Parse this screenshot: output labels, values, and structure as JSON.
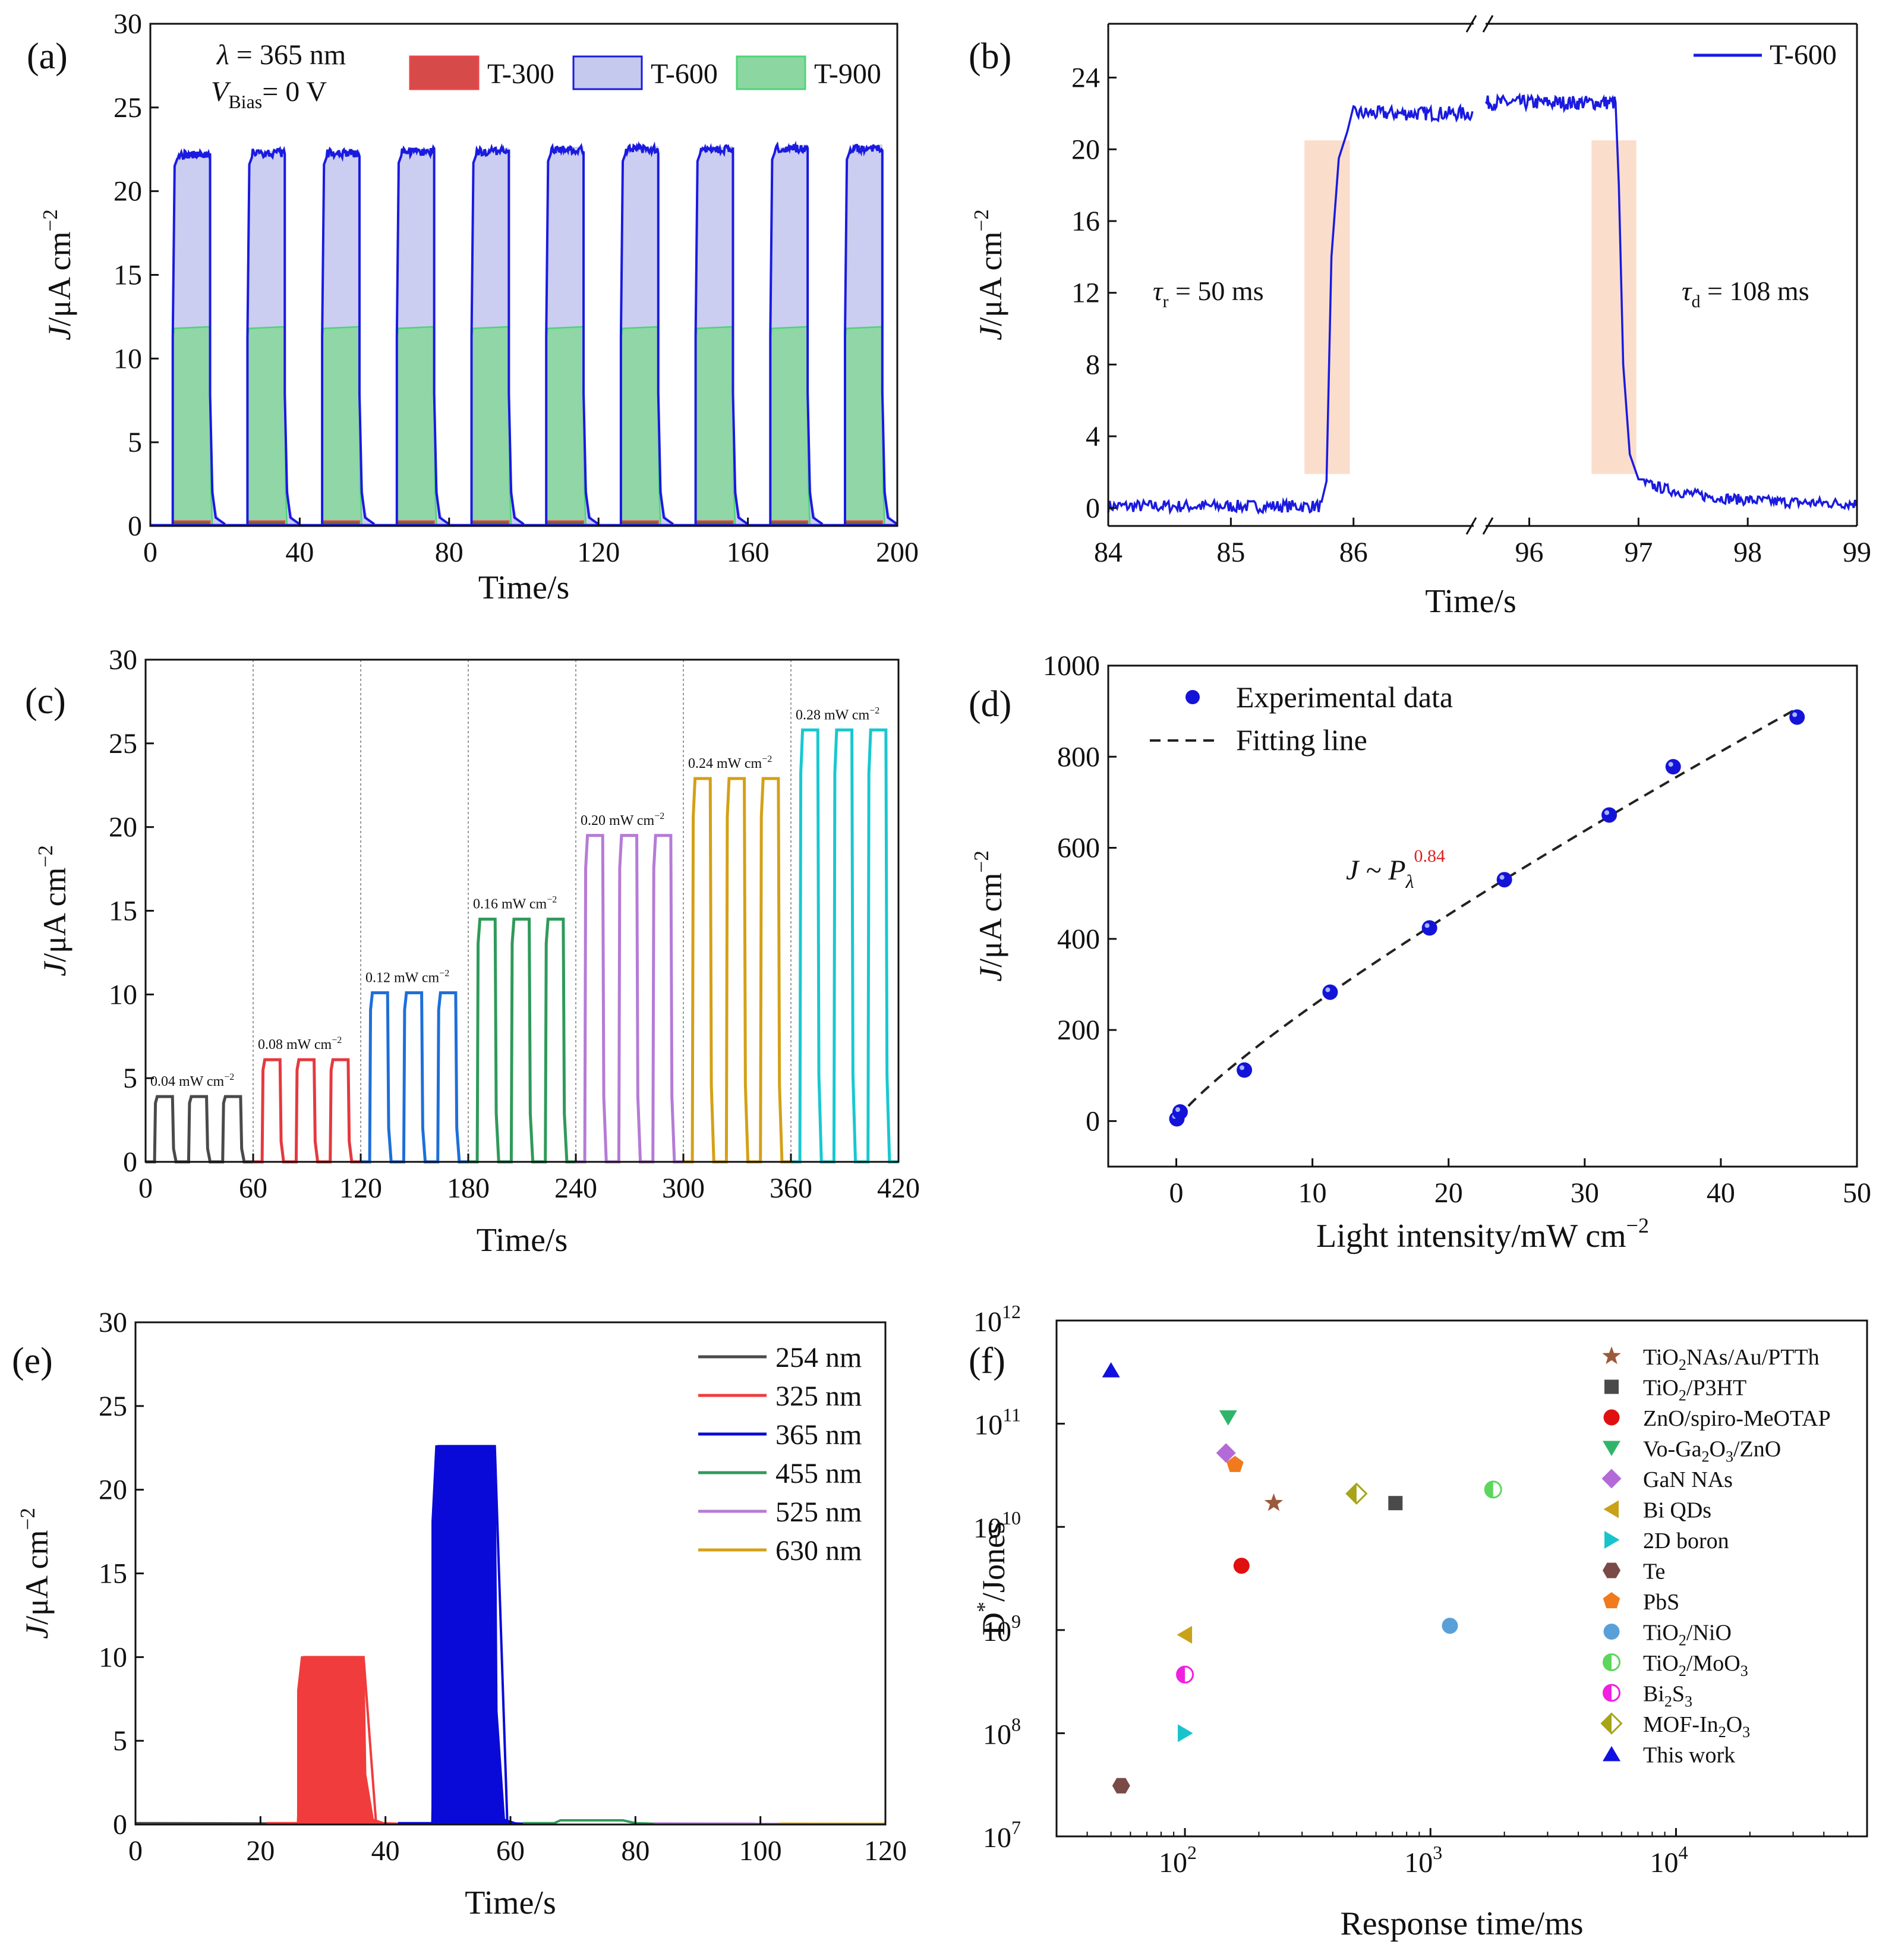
{
  "chart_data": [
    {
      "panel": "(a)",
      "type": "line",
      "xlabel": "Time/s",
      "ylabel": "J/μA cm",
      "ylabel_sup": "−2",
      "xlim": [
        0,
        200
      ],
      "ylim": [
        0,
        30
      ],
      "xticks": [
        "0",
        "40",
        "80",
        "120",
        "160",
        "200"
      ],
      "yticks": [
        "0",
        "5",
        "10",
        "15",
        "20",
        "25",
        "30"
      ],
      "annotations": {
        "lambda": "λ = 365 nm",
        "vbias_main": "V",
        "vbias_sub": "Bias",
        "vbias_rest": "= 0 V"
      },
      "pulse_starts": [
        6,
        26,
        46,
        66,
        86,
        106,
        126,
        146,
        166,
        186
      ],
      "pulse_width": 10,
      "series": [
        {
          "name": "T-300",
          "color": "#e8464b",
          "peak": 0.3
        },
        {
          "name": "T-600",
          "color": "#1a1ae0",
          "fill": "#c5c9ee",
          "peak": 22.6,
          "peaks": [
            22.4,
            22.5,
            22.5,
            22.6,
            22.6,
            22.7,
            22.7,
            22.7,
            22.8,
            22.8
          ]
        },
        {
          "name": "T-900",
          "color": "#4fd476",
          "fill": "#8cd6a2",
          "peak": 11.8
        }
      ]
    },
    {
      "panel": "(b)",
      "type": "line",
      "xlabel": "Time/s",
      "ylabel": "J/μA cm",
      "ylabel_sup": "−2",
      "segment1_xlim": [
        84,
        86.98
      ],
      "segment2_xlim": [
        95.6,
        99
      ],
      "ylim": [
        -1,
        27
      ],
      "xticks": [
        "84",
        "85",
        "86",
        "96",
        "97",
        "98",
        "99"
      ],
      "yticks": [
        "0",
        "4",
        "8",
        "12",
        "16",
        "20",
        "24"
      ],
      "series": [
        {
          "name": "T-600",
          "color": "#1a1ae0"
        }
      ],
      "rise_time": "= 50 ms",
      "rise_symbol": "τ",
      "rise_sub": "r",
      "decay_time": "= 108 ms",
      "decay_symbol": "τ",
      "decay_sub": "d",
      "on_time": 85.75,
      "off_time": 96.8,
      "level_seg1": 22.0,
      "level_seg2": 22.6
    },
    {
      "panel": "(c)",
      "type": "line",
      "xlabel": "Time/s",
      "ylabel": "J/μA cm",
      "ylabel_sup": "−2",
      "xlim": [
        0,
        420
      ],
      "ylim": [
        0,
        30
      ],
      "xticks": [
        "0",
        "60",
        "120",
        "180",
        "240",
        "300",
        "360",
        "420"
      ],
      "yticks": [
        "0",
        "5",
        "10",
        "15",
        "20",
        "25",
        "30"
      ],
      "groups": [
        {
          "label": "0.04 mW cm",
          "sup": "−2",
          "peak": 3.9,
          "color": "#4a4a4a"
        },
        {
          "label": "0.08 mW cm",
          "sup": "−2",
          "peak": 6.1,
          "color": "#e5393f"
        },
        {
          "label": "0.12 mW cm",
          "sup": "−2",
          "peak": 10.1,
          "color": "#1e6fd9"
        },
        {
          "label": "0.16 mW cm",
          "sup": "−2",
          "peak": 14.5,
          "color": "#2f9a5a"
        },
        {
          "label": "0.20 mW cm",
          "sup": "−2",
          "peak": 19.5,
          "color": "#b57bd6"
        },
        {
          "label": "0.24 mW cm",
          "sup": "−2",
          "peak": 22.9,
          "color": "#d4a017"
        },
        {
          "label": "0.28 mW cm",
          "sup": "−2",
          "peak": 25.8,
          "color": "#18c8d0"
        }
      ]
    },
    {
      "panel": "(d)",
      "type": "scatter",
      "xlabel": "Light intensity/mW cm",
      "xlabel_sup": "−2",
      "ylabel": "J/μA cm",
      "ylabel_sup": "−2",
      "xlim": [
        -5,
        50
      ],
      "ylim": [
        -100,
        1000
      ],
      "xticks": [
        "0",
        "10",
        "20",
        "30",
        "40",
        "50"
      ],
      "yticks": [
        "0",
        "200",
        "400",
        "600",
        "800",
        "1000"
      ],
      "legend": [
        "Experimental data",
        "Fitting line"
      ],
      "fit_label": "J ~ P",
      "fit_sub": "λ",
      "fit_exp": "0.84",
      "x": [
        0.04,
        0.28,
        5,
        11.3,
        18.6,
        24.1,
        31.8,
        36.5,
        45.6
      ],
      "y": [
        5,
        20,
        112,
        283,
        424,
        530,
        672,
        778,
        887
      ],
      "fit": {
        "a": 36.6,
        "b": 0.84
      }
    },
    {
      "panel": "(e)",
      "type": "line",
      "xlabel": "Time/s",
      "ylabel": "J/μA cm",
      "ylabel_sup": "−2",
      "xlim": [
        0,
        120
      ],
      "ylim": [
        0,
        30
      ],
      "xticks": [
        "0",
        "20",
        "40",
        "60",
        "80",
        "100",
        "120"
      ],
      "yticks": [
        "0",
        "5",
        "10",
        "15",
        "20",
        "25",
        "30"
      ],
      "series": [
        {
          "name": "254 nm",
          "color": "#4a4a4a",
          "range": [
            0,
            21
          ],
          "peak": 0.08
        },
        {
          "name": "325 nm",
          "color": "#f03c3c",
          "range": [
            21,
            42
          ],
          "peak": 10.0,
          "pulse": [
            26,
            36.5
          ]
        },
        {
          "name": "365 nm",
          "color": "#0a0ad8",
          "range": [
            42,
            62
          ],
          "peak": 22.6,
          "pulse": [
            47.5,
            57.5
          ]
        },
        {
          "name": "455 nm",
          "color": "#2f9a5a",
          "range": [
            62,
            83
          ],
          "peak": 0.25,
          "pulse": [
            67,
            78
          ]
        },
        {
          "name": "525 nm",
          "color": "#b57bd6",
          "range": [
            83,
            103
          ],
          "peak": 0.06
        },
        {
          "name": "630 nm",
          "color": "#d4a017",
          "range": [
            103,
            120
          ],
          "peak": 0.05
        }
      ]
    },
    {
      "panel": "(f)",
      "type": "scatter",
      "xlabel": "Response time/ms",
      "ylabel": "D",
      "ylabel_sup": "*",
      "ylabel_rest": "/Jones",
      "xscale": "log",
      "yscale": "log",
      "xlim": [
        30,
        60000
      ],
      "ylim": [
        10000000.0,
        1000000000000.0
      ],
      "xticks": [
        {
          "base": "10",
          "exp": "2"
        },
        {
          "base": "10",
          "exp": "3"
        },
        {
          "base": "10",
          "exp": "4"
        }
      ],
      "yticks": [
        {
          "base": "10",
          "exp": "7"
        },
        {
          "base": "10",
          "exp": "8"
        },
        {
          "base": "10",
          "exp": "9"
        },
        {
          "base": "10",
          "exp": "10"
        },
        {
          "base": "10",
          "exp": "11"
        },
        {
          "base": "10",
          "exp": "12"
        }
      ],
      "points": [
        {
          "name": "TiO₂NAs/Au/PTTh",
          "x": 230,
          "y": 17000000000.0,
          "color": "#9c5a3c",
          "marker": "star"
        },
        {
          "name": "TiO₂/P3HT",
          "x": 720,
          "y": 17000000000.0,
          "color": "#4a4a4a",
          "marker": "square"
        },
        {
          "name": "ZnO/spiro-MeOTAP",
          "x": 170,
          "y": 4200000000.0,
          "color": "#e01010",
          "marker": "circle"
        },
        {
          "name": "Vo-Ga₂O₃/ZnO",
          "x": 150,
          "y": 115000000000.0,
          "color": "#2fb56a",
          "marker": "tri-down"
        },
        {
          "name": "GaN NAs",
          "x": 147,
          "y": 52000000000.0,
          "color": "#b36ad6",
          "marker": "diamond"
        },
        {
          "name": "Bi QDs",
          "x": 100,
          "y": 900000000.0,
          "color": "#c9a21a",
          "marker": "tri-left"
        },
        {
          "name": "2D boron",
          "x": 100,
          "y": 100000000.0,
          "color": "#18c4cc",
          "marker": "tri-right"
        },
        {
          "name": "Te",
          "x": 55,
          "y": 31000000.0,
          "color": "#7a4a46",
          "marker": "hexagon"
        },
        {
          "name": "PbS",
          "x": 160,
          "y": 40000000000.0,
          "color": "#f07a1c",
          "marker": "pentagon"
        },
        {
          "name": "TiO₂/NiO",
          "x": 1200,
          "y": 1100000000.0,
          "color": "#5aa0d8",
          "marker": "circle"
        },
        {
          "name": "TiO₂/MoO₃",
          "x": 1800,
          "y": 23000000000.0,
          "color": "#5cd65c",
          "marker": "half-circle"
        },
        {
          "name": "Bi₂S₃",
          "x": 100,
          "y": 370000000.0,
          "color": "#f020e0",
          "marker": "half-circle"
        },
        {
          "name": "MOF-In₂O₃",
          "x": 500,
          "y": 21000000000.0,
          "color": "#a6a418",
          "marker": "half-diamond"
        },
        {
          "name": "This work",
          "x": 50,
          "y": 330000000000.0,
          "color": "#1010e0",
          "marker": "tri-up"
        }
      ],
      "legend_display": [
        [
          "TiO",
          "2",
          "NAs/Au/PTTh"
        ],
        [
          "TiO",
          "2",
          "/P3HT"
        ],
        [
          "ZnO/spiro-MeOTAP",
          "",
          ""
        ],
        [
          "Vo-Ga",
          "2",
          "O",
          "3",
          "/ZnO"
        ],
        [
          "GaN NAs",
          "",
          ""
        ],
        [
          "Bi QDs",
          "",
          ""
        ],
        [
          "2D boron",
          "",
          ""
        ],
        [
          "Te",
          "",
          ""
        ],
        [
          "PbS",
          "",
          ""
        ],
        [
          "TiO",
          "2",
          "/NiO"
        ],
        [
          "TiO",
          "2",
          "/MoO",
          "3",
          ""
        ],
        [
          "Bi",
          "2",
          "S",
          "3",
          ""
        ],
        [
          "MOF-In",
          "2",
          "O",
          "3",
          ""
        ],
        [
          "This work",
          "",
          ""
        ]
      ]
    }
  ]
}
